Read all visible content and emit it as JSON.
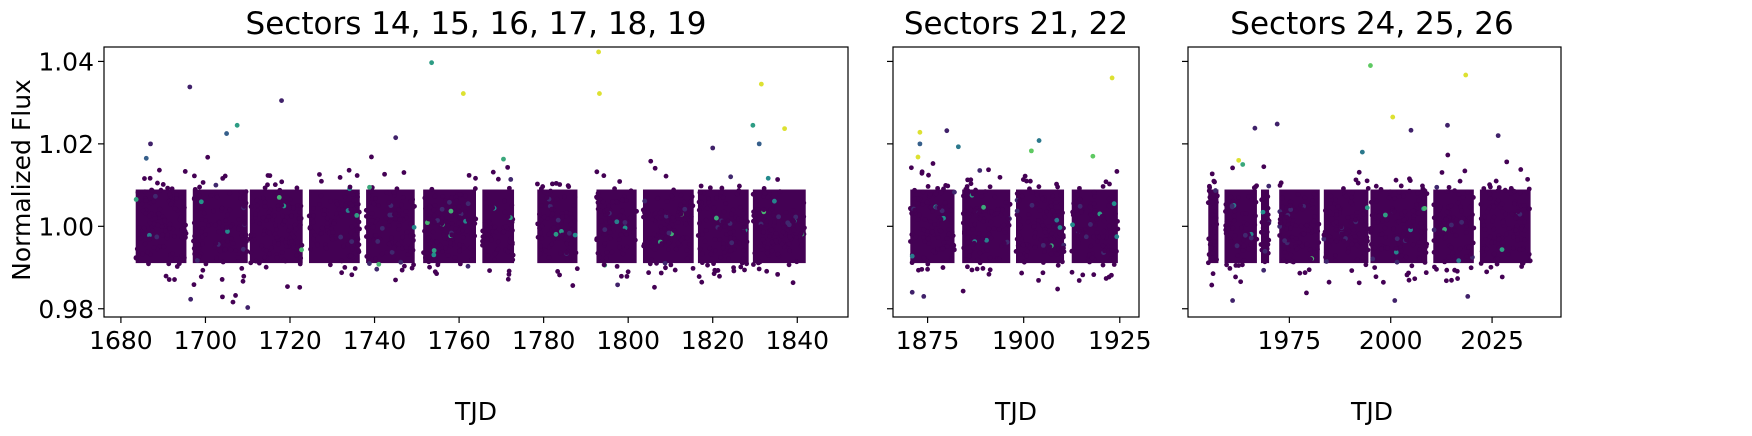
{
  "figure": {
    "ylabel": "Normalized Flux"
  },
  "chart_data": [
    {
      "type": "scatter",
      "title": "Sectors 14, 15, 16, 17, 18, 19",
      "xlabel": "TJD",
      "ylabel": "Normalized Flux",
      "xlim": [
        1676,
        1852
      ],
      "ylim": [
        0.978,
        1.0435
      ],
      "xticks": [
        1680,
        1700,
        1720,
        1740,
        1760,
        1780,
        1800,
        1820,
        1840
      ],
      "xtick_labels": [
        "1680",
        "1700",
        "1720",
        "1740",
        "1760",
        "1780",
        "1800",
        "1820",
        "1840"
      ],
      "yticks": [
        0.98,
        1.0,
        1.02,
        1.04
      ],
      "ytick_labels": [
        "0.98",
        "1.00",
        "1.02",
        "1.04"
      ],
      "show_ytick_labels": true,
      "grid": false,
      "colormap": "viridis",
      "segments": [
        [
          1683.5,
          1695.5
        ],
        [
          1697.0,
          1710.0
        ],
        [
          1710.5,
          1723.0
        ],
        [
          1724.5,
          1736.5
        ],
        [
          1738.0,
          1749.5
        ],
        [
          1751.5,
          1764.0
        ],
        [
          1765.5,
          1773.0
        ],
        [
          1778.5,
          1788.0
        ],
        [
          1792.5,
          1802.0
        ],
        [
          1803.5,
          1815.5
        ],
        [
          1816.5,
          1828.5
        ],
        [
          1829.5,
          1842.0
        ]
      ],
      "band": {
        "center": 1.0,
        "half_width": 0.0105
      },
      "outliers": [
        [
          1696.3,
          1.0338,
          0.1
        ],
        [
          1718.0,
          1.0305,
          0.1
        ],
        [
          1707.5,
          1.0245,
          0.55
        ],
        [
          1705.0,
          1.0225,
          0.3
        ],
        [
          1753.5,
          1.0397,
          0.55
        ],
        [
          1761.0,
          1.0322,
          0.95
        ],
        [
          1793.0,
          1.0423,
          0.95
        ],
        [
          1793.2,
          1.0322,
          0.95
        ],
        [
          1831.5,
          1.0345,
          0.95
        ],
        [
          1829.5,
          1.0245,
          0.55
        ],
        [
          1837.0,
          1.0237,
          0.95
        ],
        [
          1831.0,
          1.02,
          0.3
        ],
        [
          1745.0,
          1.0215,
          0.1
        ],
        [
          1687.0,
          1.02,
          0.1
        ],
        [
          1820.0,
          1.019,
          0.1
        ],
        [
          1770.5,
          1.0163,
          0.6
        ],
        [
          1686.0,
          1.0165,
          0.3
        ],
        [
          1696.5,
          0.9823,
          0.1
        ],
        [
          1710.0,
          0.9803,
          0.1
        ],
        [
          1797.5,
          0.9858,
          0.1
        ]
      ]
    },
    {
      "type": "scatter",
      "title": "Sectors 21, 22",
      "xlabel": "TJD",
      "ylabel": "",
      "xlim": [
        1866,
        1930
      ],
      "ylim": [
        0.978,
        1.0435
      ],
      "xticks": [
        1875,
        1900,
        1925
      ],
      "xtick_labels": [
        "1875",
        "1900",
        "1925"
      ],
      "yticks": [
        0.98,
        1.0,
        1.02,
        1.04
      ],
      "ytick_labels": [
        "0.98",
        "1.00",
        "1.02",
        "1.04"
      ],
      "show_ytick_labels": false,
      "grid": false,
      "colormap": "viridis",
      "segments": [
        [
          1870.5,
          1882.0
        ],
        [
          1884.0,
          1896.5
        ],
        [
          1898.0,
          1910.5
        ],
        [
          1912.5,
          1924.5
        ]
      ],
      "band": {
        "center": 1.0,
        "half_width": 0.0105
      },
      "outliers": [
        [
          1923.0,
          1.036,
          0.95
        ],
        [
          1873.0,
          1.0228,
          0.95
        ],
        [
          1880.0,
          1.0232,
          0.1
        ],
        [
          1904.0,
          1.0208,
          0.4
        ],
        [
          1873.0,
          1.02,
          0.3
        ],
        [
          1902.0,
          1.0183,
          0.75
        ],
        [
          1918.0,
          1.017,
          0.75
        ],
        [
          1883.0,
          1.0193,
          0.4
        ],
        [
          1872.5,
          1.0168,
          0.95
        ],
        [
          1871.0,
          0.984,
          0.1
        ],
        [
          1874.0,
          0.983,
          0.1
        ]
      ]
    },
    {
      "type": "scatter",
      "title": "Sectors 24, 25, 26",
      "xlabel": "TJD",
      "ylabel": "",
      "xlim": [
        1950,
        2042
      ],
      "ylim": [
        0.978,
        1.0435
      ],
      "xticks": [
        1975,
        2000,
        2025
      ],
      "xtick_labels": [
        "1975",
        "2000",
        "2025"
      ],
      "yticks": [
        0.98,
        1.0,
        1.02,
        1.04
      ],
      "ytick_labels": [
        "0.98",
        "1.00",
        "1.02",
        "1.04"
      ],
      "show_ytick_labels": false,
      "grid": false,
      "colormap": "viridis",
      "segments": [
        [
          1955.0,
          1957.5
        ],
        [
          1959.0,
          1967.0
        ],
        [
          1968.0,
          1970.0
        ],
        [
          1972.5,
          1982.5
        ],
        [
          1983.5,
          1994.5
        ],
        [
          1995.0,
          2009.0
        ],
        [
          2010.5,
          2020.5
        ],
        [
          2022.0,
          2034.5
        ]
      ],
      "band": {
        "center": 1.0,
        "half_width": 0.0105
      },
      "outliers": [
        [
          1995.0,
          1.039,
          0.75
        ],
        [
          2018.5,
          1.0367,
          0.95
        ],
        [
          2000.5,
          1.0265,
          0.95
        ],
        [
          1972.0,
          1.0248,
          0.1
        ],
        [
          2014.0,
          1.0245,
          0.1
        ],
        [
          1966.5,
          1.0238,
          0.1
        ],
        [
          2005.0,
          1.0233,
          0.1
        ],
        [
          2026.5,
          1.022,
          0.1
        ],
        [
          1962.5,
          1.016,
          0.95
        ],
        [
          1963.5,
          1.015,
          0.6
        ],
        [
          1993.0,
          1.018,
          0.4
        ],
        [
          1961.0,
          0.982,
          0.1
        ],
        [
          2001.0,
          0.982,
          0.1
        ],
        [
          2019.0,
          0.983,
          0.1
        ]
      ]
    }
  ]
}
